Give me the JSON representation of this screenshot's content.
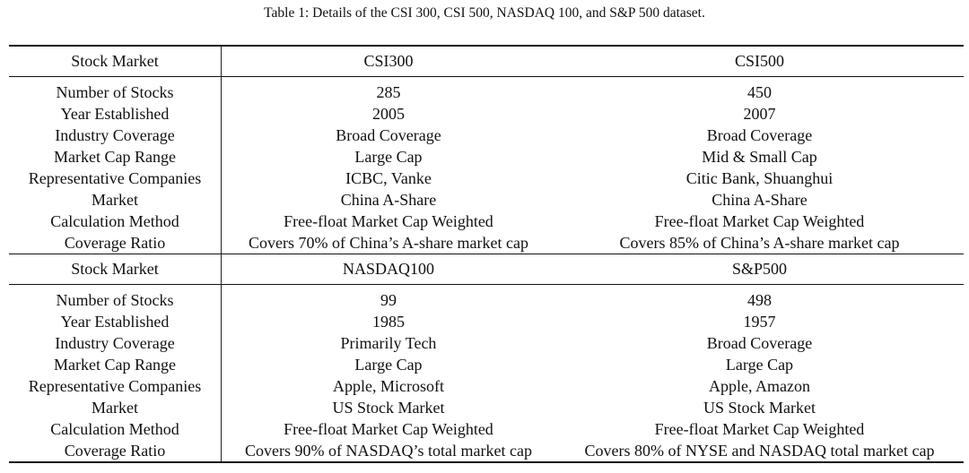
{
  "caption": "Table 1: Details of the CSI 300, CSI 500, NASDAQ 100, and S&P 500 dataset.",
  "sections": [
    {
      "header": [
        "Stock Market",
        "CSI300",
        "CSI500"
      ],
      "rows": [
        [
          "Number of Stocks",
          "285",
          "450"
        ],
        [
          "Year Established",
          "2005",
          "2007"
        ],
        [
          "Industry Coverage",
          "Broad Coverage",
          "Broad Coverage"
        ],
        [
          "Market Cap Range",
          "Large Cap",
          "Mid & Small Cap"
        ],
        [
          "Representative Companies",
          "ICBC, Vanke",
          "Citic Bank, Shuanghui"
        ],
        [
          "Market",
          "China A-Share",
          "China A-Share"
        ],
        [
          "Calculation Method",
          "Free-float Market Cap Weighted",
          "Free-float Market Cap Weighted"
        ],
        [
          "Coverage Ratio",
          "Covers 70% of China’s A-share market cap",
          "Covers 85% of China’s A-share market cap"
        ]
      ]
    },
    {
      "header": [
        "Stock Market",
        "NASDAQ100",
        "S&P500"
      ],
      "rows": [
        [
          "Number of Stocks",
          "99",
          "498"
        ],
        [
          "Year Established",
          "1985",
          "1957"
        ],
        [
          "Industry Coverage",
          "Primarily Tech",
          "Broad Coverage"
        ],
        [
          "Market Cap Range",
          "Large Cap",
          "Large Cap"
        ],
        [
          "Representative Companies",
          "Apple, Microsoft",
          "Apple, Amazon"
        ],
        [
          "Market",
          "US Stock Market",
          "US Stock Market"
        ],
        [
          "Calculation Method",
          "Free-float Market Cap Weighted",
          "Free-float Market Cap Weighted"
        ],
        [
          "Coverage Ratio",
          "Covers 90% of NASDAQ’s total market cap",
          "Covers 80% of NYSE and NASDAQ total market cap"
        ]
      ]
    }
  ]
}
